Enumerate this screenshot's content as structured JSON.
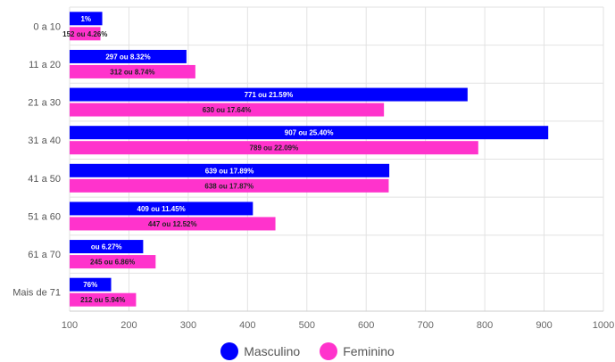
{
  "chart_data": {
    "type": "bar",
    "orientation": "horizontal",
    "categories": [
      "0 a 10",
      "11 a 20",
      "21 a 30",
      "31 a 40",
      "41 a 50",
      "51 a 60",
      "61 a 70",
      "Mais de 71"
    ],
    "series": [
      {
        "name": "Masculino",
        "color": "#0000ff",
        "values": [
          155,
          297,
          771,
          907,
          639,
          409,
          224,
          170
        ],
        "labels": [
          "1%",
          "297 ou 8.32%",
          "771 ou 21.59%",
          "907 ou 25.40%",
          "639 ou 17.89%",
          "409 ou 11.45%",
          "ou 6.27%",
          "76%"
        ]
      },
      {
        "name": "Feminino",
        "color": "#ff33cc",
        "values": [
          152,
          312,
          630,
          789,
          638,
          447,
          245,
          212
        ],
        "labels": [
          "152 ou 4.26%",
          "312 ou 8.74%",
          "630 ou 17.64%",
          "789 ou 22.09%",
          "638 ou 17.87%",
          "447 ou 12.52%",
          "245 ou 6.86%",
          "212 ou 5.94%"
        ]
      }
    ],
    "xlim": [
      100,
      1000
    ],
    "xticks": [
      100,
      200,
      300,
      400,
      500,
      600,
      700,
      800,
      900,
      1000
    ],
    "grid": true,
    "legend": "bottom"
  }
}
